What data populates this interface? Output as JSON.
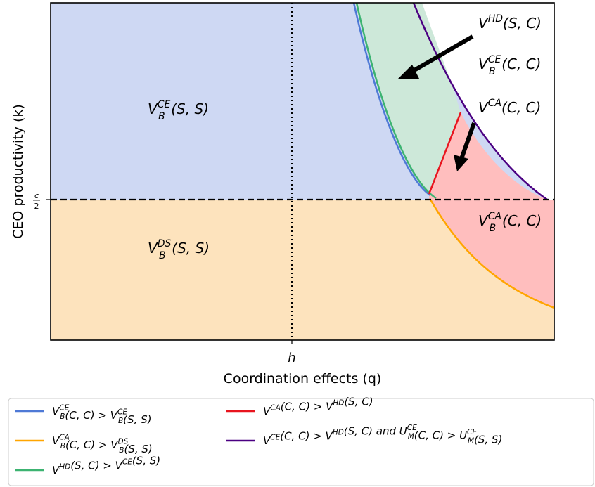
{
  "chart_data": {
    "type": "area",
    "xlabel": "Coordination effects (q)",
    "ylabel": "CEO productivity (k)",
    "x_ticks": [
      {
        "value": "h",
        "label": "h"
      }
    ],
    "y_ticks": [
      {
        "value": "c/2",
        "label_num": "c",
        "label_den": "2"
      }
    ],
    "grid": false,
    "reference_lines": [
      {
        "orientation": "vertical",
        "at": "h",
        "style": "dotted"
      },
      {
        "orientation": "horizontal",
        "at": "c/2",
        "style": "dashed"
      }
    ],
    "regions": [
      {
        "label": {
          "V": "V",
          "sup": "CE",
          "sub": "B",
          "args": "(S, S)"
        },
        "color": "#ced8f3"
      },
      {
        "label": {
          "V": "V",
          "sup": "DS",
          "sub": "B",
          "args": "(S, S)"
        },
        "color": "#fde3bd"
      },
      {
        "label": {
          "V": "V",
          "sup": "HD",
          "sub": "",
          "args": "(S, C)"
        },
        "color": "#cde8d9"
      },
      {
        "label": {
          "V": "V",
          "sup": "CE",
          "sub": "B",
          "args": "(C, C)"
        },
        "color": "#ffffff"
      },
      {
        "label": {
          "V": "V",
          "sup": "CA",
          "sub": "",
          "args": "(C, C)"
        },
        "color": "#ffbebe"
      },
      {
        "label": {
          "V": "V",
          "sup": "CA",
          "sub": "B",
          "args": "(C, C)"
        },
        "color": "#ffbebe"
      }
    ],
    "legend": {
      "placement": "below",
      "entries": [
        {
          "color": "#4e79d6",
          "parts": [
            [
              "V",
              "CE",
              "B"
            ],
            [
              "(C, C) > ",
              ""
            ],
            [
              "V",
              "CE",
              "B"
            ],
            [
              "(S, S)",
              ""
            ]
          ]
        },
        {
          "color": "#ffa500",
          "parts": [
            [
              "V",
              "CA",
              "B"
            ],
            [
              "(C, C) > ",
              ""
            ],
            [
              "V",
              "DS",
              "B"
            ],
            [
              "(S, S)",
              ""
            ]
          ]
        },
        {
          "color": "#3cb371",
          "parts": [
            [
              "V",
              "HD",
              ""
            ],
            [
              "(S, C) > ",
              ""
            ],
            [
              "V",
              "CE",
              ""
            ],
            [
              "(S, S)",
              ""
            ]
          ]
        },
        {
          "color": "#e8141e",
          "parts": [
            [
              "V",
              "CA",
              ""
            ],
            [
              "(C, C) > ",
              ""
            ],
            [
              "V",
              "HD",
              ""
            ],
            [
              "(S, C)",
              ""
            ]
          ]
        },
        {
          "color": "#4b0082",
          "parts": [
            [
              "V",
              "CE",
              ""
            ],
            [
              "(C, C) > ",
              ""
            ],
            [
              "V",
              "HD",
              ""
            ],
            [
              "(S, C) and ",
              ""
            ],
            [
              "U",
              "CE",
              "M"
            ],
            [
              "(C, C) > ",
              ""
            ],
            [
              "U",
              "CE",
              "M"
            ],
            [
              "(S, S)",
              ""
            ]
          ]
        }
      ]
    }
  }
}
